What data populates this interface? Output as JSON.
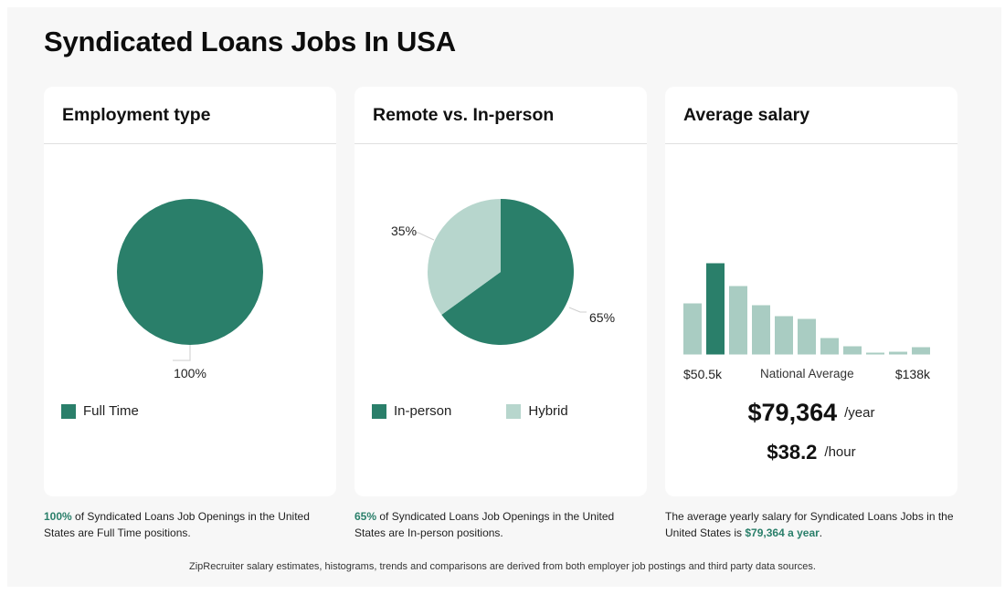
{
  "page": {
    "title": "Syndicated Loans Jobs In USA",
    "footnote": "ZipRecruiter salary estimates, histograms, trends and comparisons are derived from both employer job postings and third party data sources."
  },
  "colors": {
    "primary": "#2a7f6a",
    "secondary": "#b7d6cd",
    "histogram_light": "#a9ccc2"
  },
  "employment": {
    "title": "Employment type",
    "slices": [
      {
        "label": "Full Time",
        "value": 100,
        "pct_label": "100%"
      }
    ],
    "legend": [
      {
        "label": "Full Time"
      }
    ],
    "caption_highlight": "100%",
    "caption_rest": " of Syndicated Loans Job Openings in the United States are Full Time positions."
  },
  "remote": {
    "title": "Remote vs. In-person",
    "slices": [
      {
        "label": "In-person",
        "value": 65,
        "pct_label": "65%"
      },
      {
        "label": "Hybrid",
        "value": 35,
        "pct_label": "35%"
      }
    ],
    "legend": [
      {
        "label": "In-person"
      },
      {
        "label": "Hybrid"
      }
    ],
    "caption_highlight": "65%",
    "caption_rest": " of Syndicated Loans Job Openings in the United States are In-person positions."
  },
  "salary": {
    "title": "Average salary",
    "min_label": "$50.5k",
    "mid_label": "National Average",
    "max_label": "$138k",
    "yearly": "$79,364",
    "yearly_unit": "/year",
    "hourly": "$38.2",
    "hourly_unit": "/hour",
    "caption_start": "The average yearly salary for Syndicated Loans Jobs in the United States is ",
    "caption_highlight": "$79,364 a year",
    "caption_end": "."
  },
  "chart_data": [
    {
      "type": "pie",
      "title": "Employment type",
      "categories": [
        "Full Time"
      ],
      "values": [
        100
      ],
      "labels": [
        "100%"
      ],
      "legend_position": "bottom"
    },
    {
      "type": "pie",
      "title": "Remote vs. In-person",
      "categories": [
        "In-person",
        "Hybrid"
      ],
      "values": [
        65,
        35
      ],
      "labels": [
        "65%",
        "35%"
      ],
      "legend_position": "bottom"
    },
    {
      "type": "bar",
      "title": "Average salary",
      "xlabel": "",
      "ylabel": "",
      "x_range_labels": [
        "$50.5k",
        "$138k"
      ],
      "categories": [
        "b1",
        "b2",
        "b3",
        "b4",
        "b5",
        "b6",
        "b7",
        "b8",
        "b9",
        "b10",
        "b11"
      ],
      "values": [
        56,
        100,
        75,
        54,
        42,
        39,
        18,
        9,
        2,
        3,
        8
      ],
      "highlighted_index": 1,
      "annotation": "National Average",
      "grid": false
    }
  ]
}
